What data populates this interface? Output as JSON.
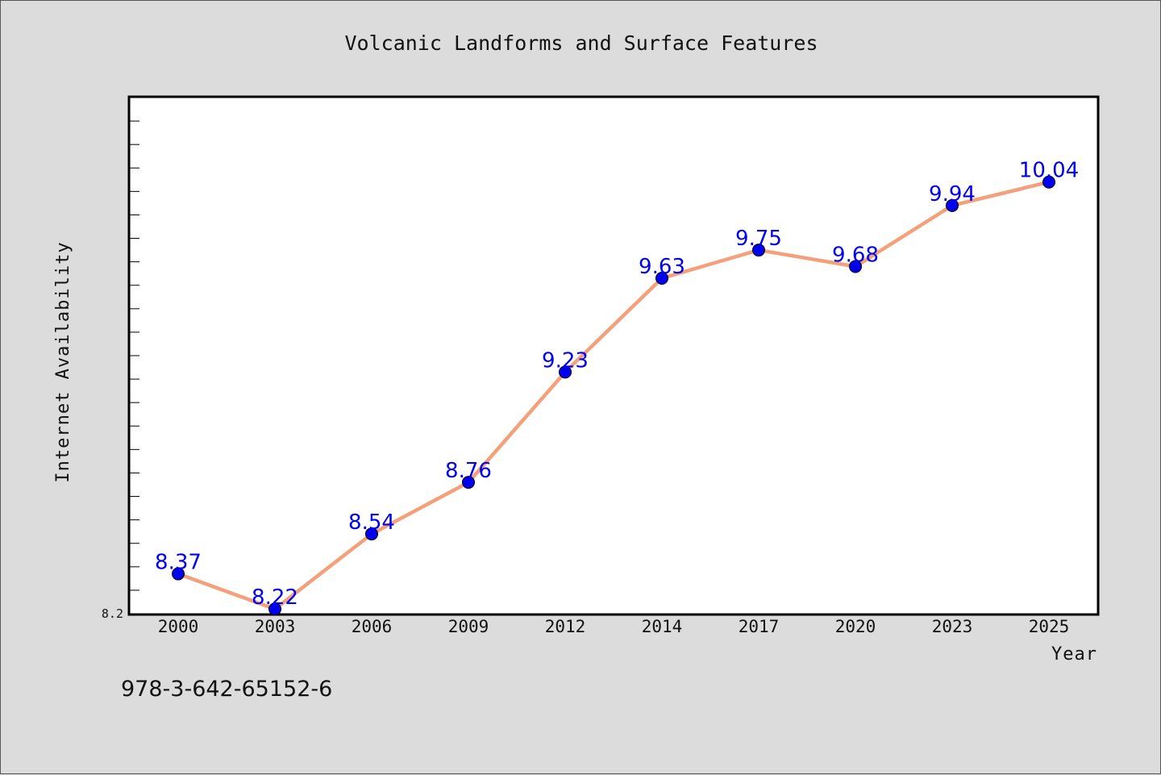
{
  "chart_data": {
    "type": "line",
    "title": "Volcanic Landforms and Surface Features",
    "xlabel": "Year",
    "ylabel": "Internet Availability",
    "categories": [
      "2000",
      "2003",
      "2006",
      "2009",
      "2012",
      "2014",
      "2017",
      "2020",
      "2023",
      "2025"
    ],
    "series": [
      {
        "values": [
          8.37,
          8.22,
          8.54,
          8.76,
          9.23,
          9.63,
          9.75,
          9.68,
          9.94,
          10.04
        ]
      }
    ],
    "data_labels": [
      "8.37",
      "8.22",
      "8.54",
      "8.76",
      "9.23",
      "9.63",
      "9.75",
      "9.68",
      "9.94",
      "10.04"
    ],
    "ylim": [
      8.2,
      10.4
    ],
    "ytick_labels": [
      "8.2"
    ],
    "grid": false,
    "legend": "none",
    "line_color": "#f4a07a",
    "marker_color": "#0000ee",
    "label_color": "#0000ee"
  },
  "footer": {
    "isbn": "978-3-642-65152-6"
  }
}
